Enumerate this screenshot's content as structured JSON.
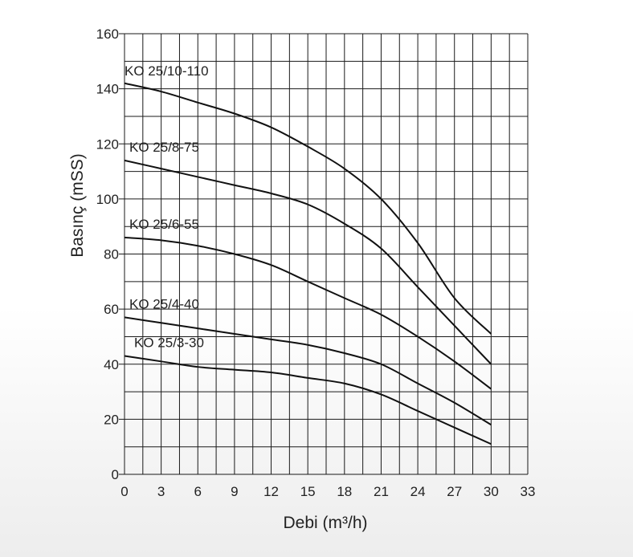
{
  "chart_data": {
    "type": "line",
    "xlabel": "Debi (m³/h)",
    "ylabel": "Basınç (mSS)",
    "xlim": [
      0,
      33
    ],
    "ylim": [
      0,
      160
    ],
    "x_ticks": [
      0,
      3,
      6,
      9,
      12,
      15,
      18,
      21,
      24,
      27,
      30,
      33
    ],
    "y_ticks": [
      0,
      20,
      40,
      60,
      80,
      100,
      120,
      140,
      160
    ],
    "x_grid_step": 1.5,
    "y_grid_step": 10,
    "grid": true,
    "series": [
      {
        "name": "KO 25/10-110",
        "x": [
          0,
          3,
          6,
          9,
          12,
          15,
          18,
          21,
          24,
          27,
          30
        ],
        "y": [
          142,
          139,
          135,
          131,
          126,
          119,
          111,
          100,
          84,
          64,
          51
        ]
      },
      {
        "name": "KO 25/8-75",
        "x": [
          0,
          3,
          6,
          9,
          12,
          15,
          18,
          21,
          24,
          27,
          30
        ],
        "y": [
          114,
          111,
          108,
          105,
          102,
          98,
          91,
          82,
          68,
          54,
          40
        ]
      },
      {
        "name": "KO 25/6-55",
        "x": [
          0,
          3,
          6,
          9,
          12,
          15,
          18,
          21,
          24,
          27,
          30
        ],
        "y": [
          86,
          85,
          83,
          80,
          76,
          70,
          64,
          58,
          50,
          41,
          31
        ]
      },
      {
        "name": "KO 25/4-40",
        "x": [
          0,
          3,
          6,
          9,
          12,
          15,
          18,
          21,
          24,
          27,
          30
        ],
        "y": [
          57,
          55,
          53,
          51,
          49,
          47,
          44,
          40,
          33,
          26,
          18
        ]
      },
      {
        "name": "KO 25/3-30",
        "x": [
          0,
          3,
          6,
          9,
          12,
          15,
          18,
          21,
          24,
          27,
          30
        ],
        "y": [
          43,
          41,
          39,
          38,
          37,
          35,
          33,
          29,
          23,
          17,
          11
        ]
      }
    ]
  }
}
